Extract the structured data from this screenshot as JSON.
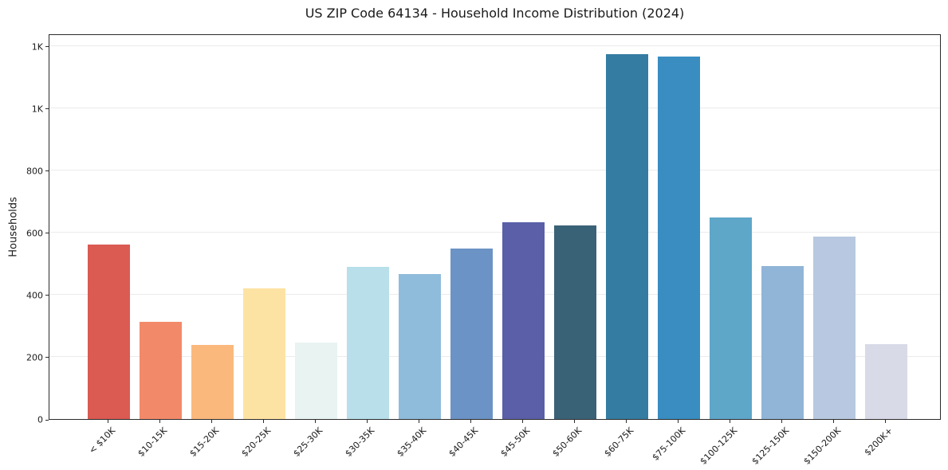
{
  "chart_data": {
    "type": "bar",
    "title": "US ZIP Code 64134 - Household Income Distribution (2024)",
    "xlabel": "",
    "ylabel": "Households",
    "categories": [
      "< $10K",
      "$10-15K",
      "$15-20K",
      "$20-25K",
      "$25-30K",
      "$30-35K",
      "$35-40K",
      "$40-45K",
      "$45-50K",
      "$50-60K",
      "$60-75K",
      "$75-100K",
      "$100-125K",
      "$125-150K",
      "$150-200K",
      "$200K+"
    ],
    "values": [
      562,
      312,
      239,
      421,
      246,
      489,
      466,
      550,
      634,
      623,
      1175,
      1167,
      650,
      493,
      588,
      242
    ],
    "bar_colors": [
      "#db5a52",
      "#f28a6a",
      "#fab87d",
      "#fde3a3",
      "#e8f3f2",
      "#b8dfea",
      "#8fbcdb",
      "#6c93c5",
      "#5a5fa8",
      "#3a6277",
      "#357ca2",
      "#398dc1",
      "#5ea7c9",
      "#90b5d7",
      "#b7c8e0",
      "#d8dae7"
    ],
    "yticks": [
      {
        "value": 0,
        "label": "0"
      },
      {
        "value": 200,
        "label": "200"
      },
      {
        "value": 400,
        "label": "400"
      },
      {
        "value": 600,
        "label": "600"
      },
      {
        "value": 800,
        "label": "800"
      },
      {
        "value": 1000,
        "label": "1K"
      },
      {
        "value": 1200,
        "label": "1K"
      }
    ],
    "ylim": [
      0,
      1241
    ],
    "grid": "horizontal",
    "legend": "none",
    "grid_color": "#ebebeb",
    "frame_color": "#2b2b2b",
    "background_color": "#ffffff",
    "x_tick_rotation_deg": 45
  }
}
